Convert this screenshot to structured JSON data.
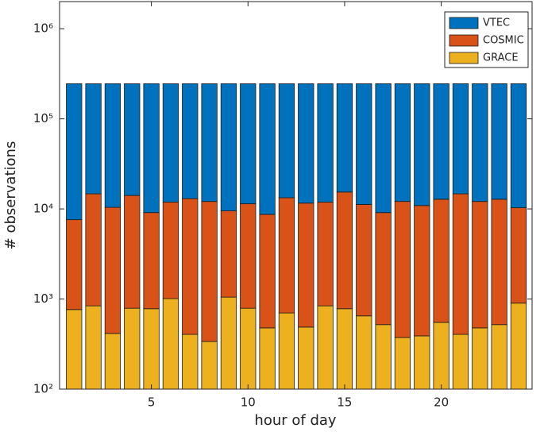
{
  "chart_data": {
    "type": "bar",
    "stacked": true,
    "log_y": true,
    "xlabel": "hour of day",
    "ylabel": "# observations",
    "categories": [
      1,
      2,
      3,
      4,
      5,
      6,
      7,
      8,
      9,
      10,
      11,
      12,
      13,
      14,
      15,
      16,
      17,
      18,
      19,
      20,
      21,
      22,
      23,
      24
    ],
    "xlim": [
      0.25,
      24.7
    ],
    "xticks": [
      5,
      10,
      15,
      20
    ],
    "ylim": [
      100,
      2000000
    ],
    "yticks": [
      {
        "value": 100,
        "label": "10²"
      },
      {
        "value": 1000,
        "label": "10³"
      },
      {
        "value": 10000,
        "label": "10⁴"
      },
      {
        "value": 100000,
        "label": "10⁵"
      },
      {
        "value": 1000000,
        "label": "10⁶"
      }
    ],
    "legend": "upper right",
    "series": [
      {
        "name": "VTEC",
        "color": "#0072bd",
        "values": [
          237410,
          230300,
          234600,
          230900,
          235900,
          233100,
          232000,
          232900,
          235500,
          233600,
          236300,
          231700,
          233400,
          233100,
          229600,
          233800,
          235900,
          232900,
          234100,
          232200,
          230300,
          232900,
          232200,
          234700
        ]
      },
      {
        "name": "COSMIC",
        "color": "#d95319",
        "values": [
          6830,
          13860,
          9990,
          13310,
          8320,
          10890,
          12600,
          11760,
          8450,
          10610,
          8220,
          12600,
          11110,
          11060,
          14620,
          10550,
          8580,
          11730,
          10510,
          12250,
          14300,
          11620,
          12280,
          9400
        ]
      },
      {
        "name": "GRACE",
        "color": "#edb120",
        "values": [
          764,
          840,
          415,
          790,
          780,
          1010,
          405,
          338,
          1050,
          790,
          478,
          700,
          488,
          840,
          780,
          650,
          520,
          374,
          390,
          550,
          405,
          478,
          520,
          900
        ]
      }
    ]
  }
}
